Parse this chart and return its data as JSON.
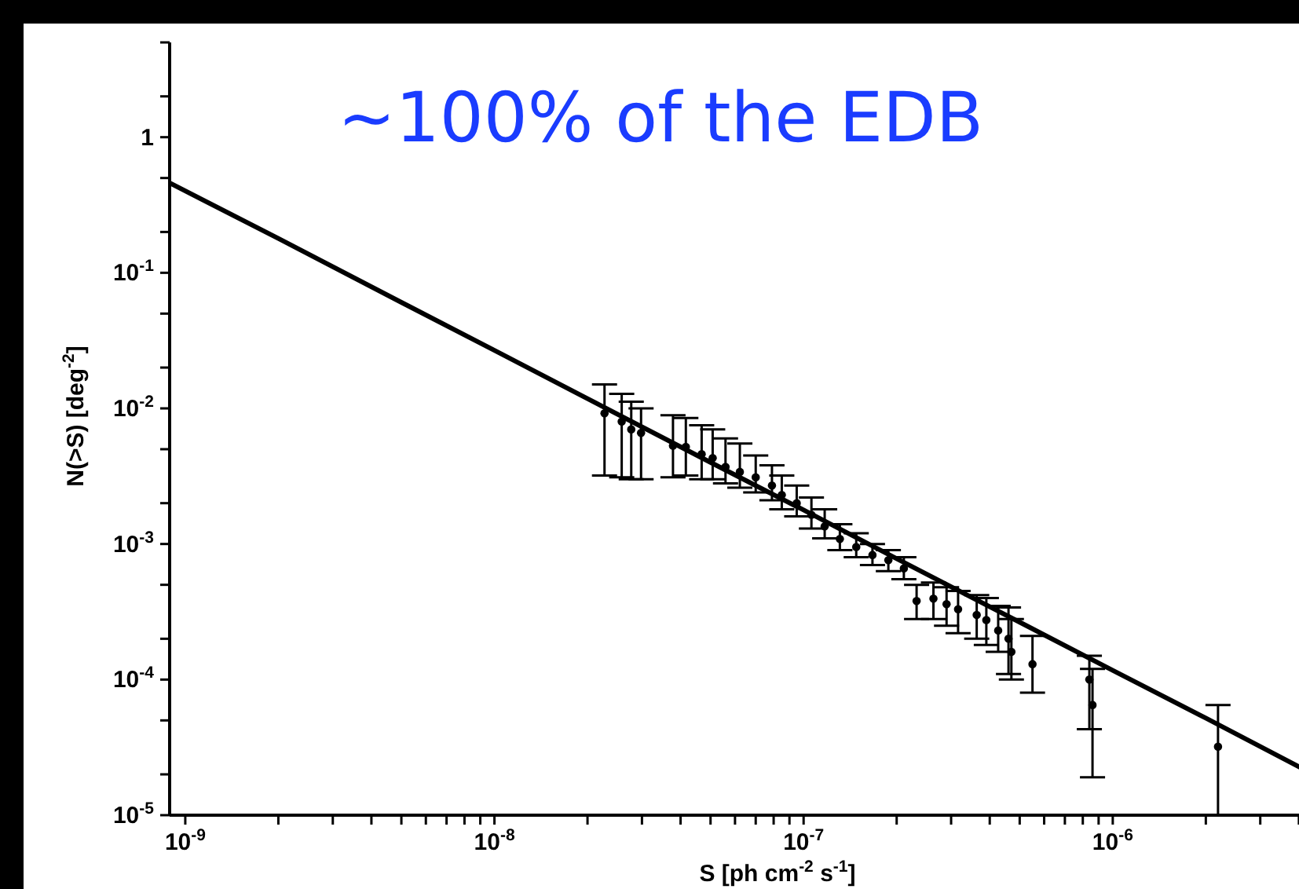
{
  "chart_data": {
    "type": "scatter",
    "xlabel": "S  [ph cm$^{-2}$ s$^{-1}$]",
    "ylabel": "N(>S) [deg$^{-2}$]",
    "annotations": [
      "~100% of the EDB"
    ],
    "log": "xy",
    "grid": false,
    "xlim": [
      8.9e-10,
      4.5e-06
    ],
    "ylim": [
      1e-05,
      5
    ],
    "xticks": [
      {
        "value": 1e-09,
        "label": "10$^{-9}$"
      },
      {
        "value": 2e-09,
        "label": null
      },
      {
        "value": 3e-09,
        "label": null
      },
      {
        "value": 4e-09,
        "label": null
      },
      {
        "value": 5e-09,
        "label": null
      },
      {
        "value": 6e-09,
        "label": null
      },
      {
        "value": 7e-09,
        "label": null
      },
      {
        "value": 8e-09,
        "label": null
      },
      {
        "value": 9e-09,
        "label": null
      },
      {
        "value": 1e-08,
        "label": "10$^{-8}$"
      },
      {
        "value": 2e-08,
        "label": null
      },
      {
        "value": 3e-08,
        "label": null
      },
      {
        "value": 4e-08,
        "label": null
      },
      {
        "value": 5e-08,
        "label": null
      },
      {
        "value": 6e-08,
        "label": null
      },
      {
        "value": 7e-08,
        "label": null
      },
      {
        "value": 8e-08,
        "label": null
      },
      {
        "value": 9e-08,
        "label": null
      },
      {
        "value": 1e-07,
        "label": "10$^{-7}$"
      },
      {
        "value": 2e-07,
        "label": null
      },
      {
        "value": 3e-07,
        "label": null
      },
      {
        "value": 4e-07,
        "label": null
      },
      {
        "value": 5e-07,
        "label": null
      },
      {
        "value": 6e-07,
        "label": null
      },
      {
        "value": 7e-07,
        "label": null
      },
      {
        "value": 8e-07,
        "label": null
      },
      {
        "value": 9e-07,
        "label": null
      },
      {
        "value": 1e-06,
        "label": "10$^{-6}$"
      },
      {
        "value": 2e-06,
        "label": null
      },
      {
        "value": 3e-06,
        "label": null
      },
      {
        "value": 4e-06,
        "label": null
      }
    ],
    "yticks": [
      {
        "value": 1e-05,
        "label": "10$^{-5}$"
      },
      {
        "value": 2e-05,
        "label": null
      },
      {
        "value": 5e-05,
        "label": null
      },
      {
        "value": 0.0001,
        "label": "10$^{-4}$"
      },
      {
        "value": 0.0002,
        "label": null
      },
      {
        "value": 0.0005,
        "label": null
      },
      {
        "value": 0.001,
        "label": "10$^{-3}$"
      },
      {
        "value": 0.002,
        "label": null
      },
      {
        "value": 0.005,
        "label": null
      },
      {
        "value": 0.01,
        "label": "10$^{-2}$"
      },
      {
        "value": 0.02,
        "label": null
      },
      {
        "value": 0.05,
        "label": null
      },
      {
        "value": 0.1,
        "label": "10$^{-1}$"
      },
      {
        "value": 0.2,
        "label": null
      },
      {
        "value": 0.5,
        "label": null
      },
      {
        "value": 1,
        "label": "1"
      },
      {
        "value": 2,
        "label": null
      },
      {
        "value": 5,
        "label": null
      }
    ],
    "series": [
      {
        "type": "line",
        "color": "#000000",
        "line_style": "solid",
        "marker": "none",
        "x": [
          8.9e-10,
          2e-09,
          5e-09,
          1e-08,
          2e-08,
          5e-08,
          1e-07,
          2e-07,
          5e-07,
          1e-06,
          2e-06,
          4.5e-06
        ],
        "values": [
          0.46,
          0.179,
          0.0605,
          0.0268,
          0.0118,
          0.004,
          0.00178,
          0.00078,
          0.000265,
          0.000117,
          5.2e-05,
          1.98e-05
        ]
      },
      {
        "color": "#000000",
        "marker": "circle",
        "x": [
          2.27e-08,
          2.58e-08,
          2.77e-08,
          2.98e-08,
          3.78e-08,
          4.16e-08,
          4.68e-08,
          5.08e-08,
          5.59e-08,
          6.22e-08,
          7e-08,
          7.9e-08,
          8.5e-08,
          9.5e-08,
          1.06e-07,
          1.17e-07,
          1.31e-07,
          1.48e-07,
          1.67e-07,
          1.88e-07,
          2.11e-07,
          2.32e-07,
          2.63e-07,
          2.9e-07,
          3.16e-07,
          3.63e-07,
          3.9e-07,
          4.26e-07,
          4.6e-07,
          4.7e-07,
          5.5e-07,
          8.4e-07,
          8.6e-07,
          2.19e-06
        ],
        "values": [
          0.0092,
          0.008,
          0.007,
          0.0066,
          0.0053,
          0.0052,
          0.0046,
          0.0043,
          0.0037,
          0.0034,
          0.0031,
          0.0027,
          0.0023,
          0.002,
          0.00164,
          0.00135,
          0.00109,
          0.00095,
          0.00083,
          0.00076,
          0.00066,
          0.00038,
          0.000395,
          0.00036,
          0.00033,
          0.0003,
          0.000275,
          0.00023,
          0.0002,
          0.00016,
          0.00013,
          0.0001,
          6.5e-05,
          3.2e-05
        ],
        "errors": [
          [
            0.0032,
            0.015
          ],
          [
            0.0031,
            0.0128
          ],
          [
            0.003,
            0.0112
          ],
          [
            0.003,
            0.01
          ],
          [
            0.0031,
            0.0089
          ],
          [
            0.0032,
            0.0085
          ],
          [
            0.003,
            0.0075
          ],
          [
            0.003,
            0.007
          ],
          [
            0.0028,
            0.006
          ],
          [
            0.0026,
            0.0055
          ],
          [
            0.0024,
            0.0045
          ],
          [
            0.0021,
            0.0038
          ],
          [
            0.0018,
            0.0032
          ],
          [
            0.0016,
            0.0027
          ],
          [
            0.0013,
            0.0022
          ],
          [
            0.0011,
            0.0018
          ],
          [
            0.0009,
            0.0014
          ],
          [
            0.0008,
            0.0012
          ],
          [
            0.0007,
            0.001
          ],
          [
            0.00063,
            0.0009
          ],
          [
            0.00055,
            0.0008
          ],
          [
            0.00028,
            0.0005
          ],
          [
            0.00028,
            0.00052
          ],
          [
            0.00025,
            0.00048
          ],
          [
            0.00022,
            0.00045
          ],
          [
            0.0002,
            0.00042
          ],
          [
            0.00018,
            0.0004
          ],
          [
            0.00016,
            0.00035
          ],
          [
            0.00011,
            0.00034
          ],
          [
            0.0001,
            0.00028
          ],
          [
            8e-05,
            0.00021
          ],
          [
            4.3e-05,
            0.00015
          ],
          [
            1.9e-05,
            0.00012
          ],
          [
            1e-05,
            6.5e-05
          ]
        ]
      }
    ]
  }
}
